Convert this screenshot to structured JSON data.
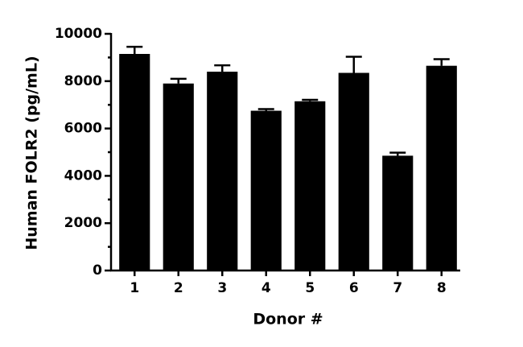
{
  "chart_data": {
    "type": "bar",
    "y_label": "Human FOLR2 (pg/mL)",
    "x_label": "Donor #",
    "categories": [
      "1",
      "2",
      "3",
      "4",
      "5",
      "6",
      "7",
      "8"
    ],
    "values": [
      9150,
      7900,
      8400,
      6750,
      7150,
      8350,
      4850,
      8650
    ],
    "errors": [
      300,
      200,
      270,
      70,
      60,
      680,
      130,
      280
    ],
    "color": "#000000",
    "ylim": [
      0,
      10000
    ],
    "yticks": [
      0,
      2000,
      4000,
      6000,
      8000,
      10000
    ],
    "yminor_ticks": [
      1000,
      3000,
      5000,
      7000,
      9000
    ],
    "grid": false
  }
}
